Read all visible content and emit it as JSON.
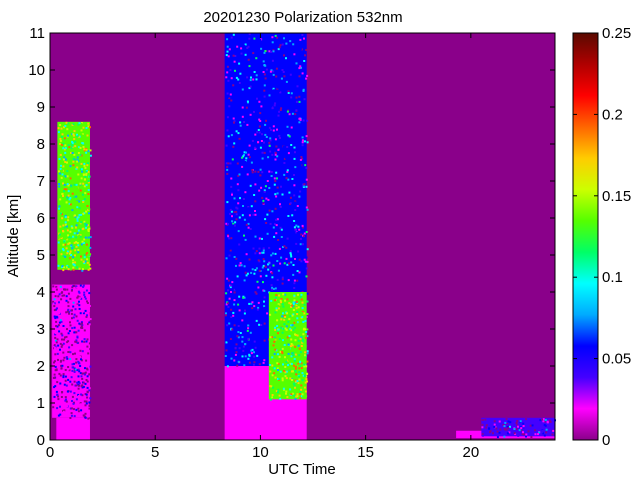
{
  "chart_data": {
    "type": "heatmap",
    "title": "20201230 Polarization 532nm",
    "xlabel": "UTC Time",
    "ylabel": "Altitude [km]",
    "xlim": [
      0,
      24
    ],
    "ylim": [
      0,
      11
    ],
    "x_ticks": [
      0,
      5,
      10,
      15,
      20
    ],
    "y_ticks": [
      0,
      1,
      2,
      3,
      4,
      5,
      6,
      7,
      8,
      9,
      10,
      11
    ],
    "colorbar": {
      "range": [
        0,
        0.25
      ],
      "ticks": [
        0,
        0.05,
        0.1,
        0.15,
        0.2,
        0.25
      ],
      "colors": [
        "#8a008a",
        "#ff00ff",
        "#4400ff",
        "#0000ff",
        "#00aaff",
        "#00ffff",
        "#00ff66",
        "#55ff00",
        "#ccff00",
        "#ffcc00",
        "#ff6600",
        "#ff0000",
        "#b00000",
        "#5a0a00"
      ]
    },
    "background_value": 0.0,
    "regions": [
      {
        "t0": 0.3,
        "t1": 1.9,
        "z0": 0.0,
        "z1": 0.6,
        "value": 0.015,
        "pattern": "solid"
      },
      {
        "t0": 0.1,
        "t1": 1.9,
        "z0": 0.6,
        "z1": 4.2,
        "value": 0.01,
        "pattern": "noise"
      },
      {
        "t0": 0.35,
        "t1": 1.9,
        "z0": 4.6,
        "z1": 8.6,
        "value": 0.13,
        "pattern": "noise"
      },
      {
        "t0": 8.3,
        "t1": 12.2,
        "z0": 0.0,
        "z1": 2.0,
        "value": 0.012,
        "pattern": "solid"
      },
      {
        "t0": 8.3,
        "t1": 12.2,
        "z0": 2.0,
        "z1": 11.0,
        "value": 0.05,
        "pattern": "noise"
      },
      {
        "t0": 10.4,
        "t1": 12.2,
        "z0": 1.1,
        "z1": 4.0,
        "value": 0.14,
        "pattern": "noise"
      },
      {
        "t0": 19.3,
        "t1": 24.0,
        "z0": 0.05,
        "z1": 0.25,
        "value": 0.012,
        "pattern": "solid"
      },
      {
        "t0": 20.5,
        "t1": 24.0,
        "z0": 0.1,
        "z1": 0.6,
        "value": 0.03,
        "pattern": "noise"
      }
    ]
  }
}
